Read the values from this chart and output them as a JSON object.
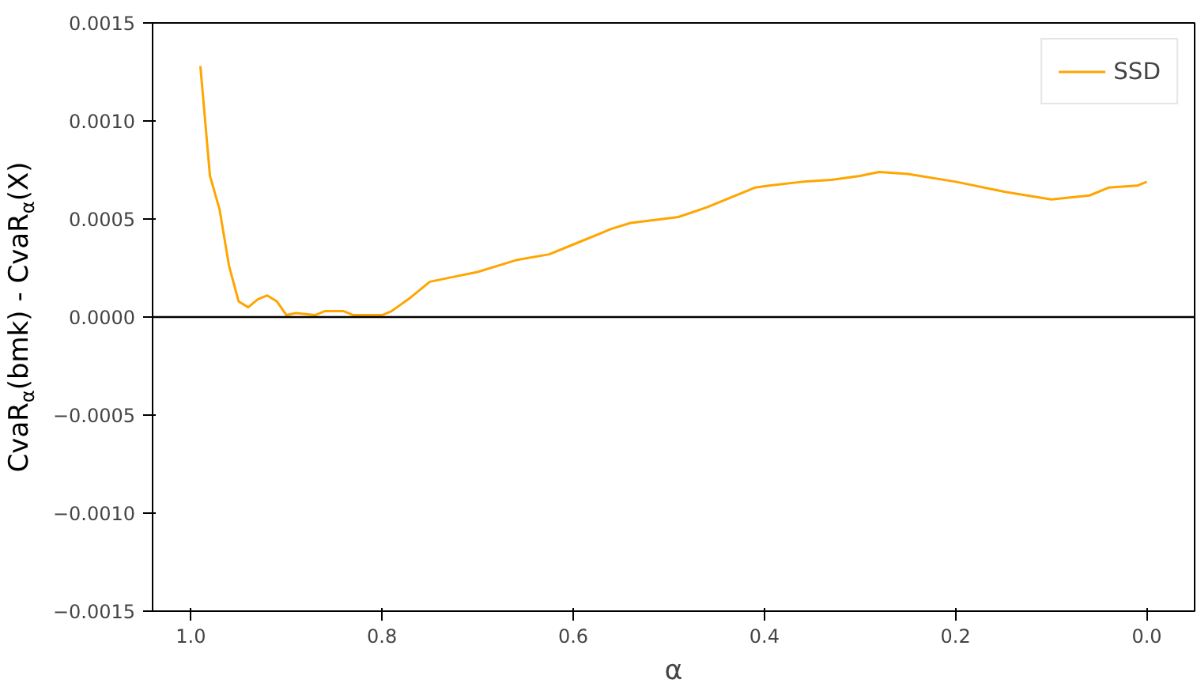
{
  "chart_data": {
    "type": "line",
    "xlabel": "α",
    "ylabel": "CvaR$_{α}$(bmk) - CvaR$_{α}$(X)",
    "x": [
      0.99,
      0.98,
      0.97,
      0.96,
      0.95,
      0.94,
      0.93,
      0.92,
      0.91,
      0.9,
      0.89,
      0.87,
      0.86,
      0.84,
      0.83,
      0.8,
      0.79,
      0.77,
      0.75,
      0.74,
      0.73,
      0.7,
      0.66,
      0.625,
      0.6,
      0.56,
      0.54,
      0.49,
      0.46,
      0.41,
      0.395,
      0.36,
      0.33,
      0.3,
      0.28,
      0.25,
      0.2,
      0.15,
      0.1,
      0.06,
      0.04,
      0.01,
      0.0
    ],
    "series": [
      {
        "name": "SSD",
        "color": "#ffa500",
        "values": [
          0.00128,
          0.00072,
          0.00055,
          0.00026,
          8e-05,
          5e-05,
          9e-05,
          0.00011,
          8e-05,
          1e-05,
          2e-05,
          1e-05,
          3e-05,
          3e-05,
          1e-05,
          1e-05,
          3e-05,
          0.0001,
          0.00018,
          0.00019,
          0.0002,
          0.00023,
          0.00029,
          0.00032,
          0.00037,
          0.00045,
          0.00048,
          0.00051,
          0.00056,
          0.00066,
          0.00067,
          0.00069,
          0.0007,
          0.00072,
          0.00074,
          0.00073,
          0.00069,
          0.00064,
          0.0006,
          0.00062,
          0.00066,
          0.00067,
          0.00069
        ]
      }
    ],
    "xlim": [
      1.04,
      -0.05
    ],
    "ylim": [
      -0.0015,
      0.0015
    ],
    "xticks": [
      {
        "value": 1.0,
        "label": "1.0"
      },
      {
        "value": 0.8,
        "label": "0.8"
      },
      {
        "value": 0.6,
        "label": "0.6"
      },
      {
        "value": 0.4,
        "label": "0.4"
      },
      {
        "value": 0.2,
        "label": "0.2"
      },
      {
        "value": 0.0,
        "label": "0.0"
      }
    ],
    "yticks": [
      {
        "value": -0.0015,
        "label": "−0.0015"
      },
      {
        "value": -0.001,
        "label": "−0.0010"
      },
      {
        "value": -0.0005,
        "label": "−0.0005"
      },
      {
        "value": 0.0,
        "label": "0.0000"
      },
      {
        "value": 0.0005,
        "label": "0.0005"
      },
      {
        "value": 0.001,
        "label": "0.0010"
      },
      {
        "value": 0.0015,
        "label": "0.0015"
      }
    ],
    "ref_lines": [
      {
        "axis": "y",
        "value": 0,
        "color": "#000000"
      }
    ],
    "grid": false,
    "legend": "top right",
    "line_style": "solid",
    "marker": "none"
  }
}
